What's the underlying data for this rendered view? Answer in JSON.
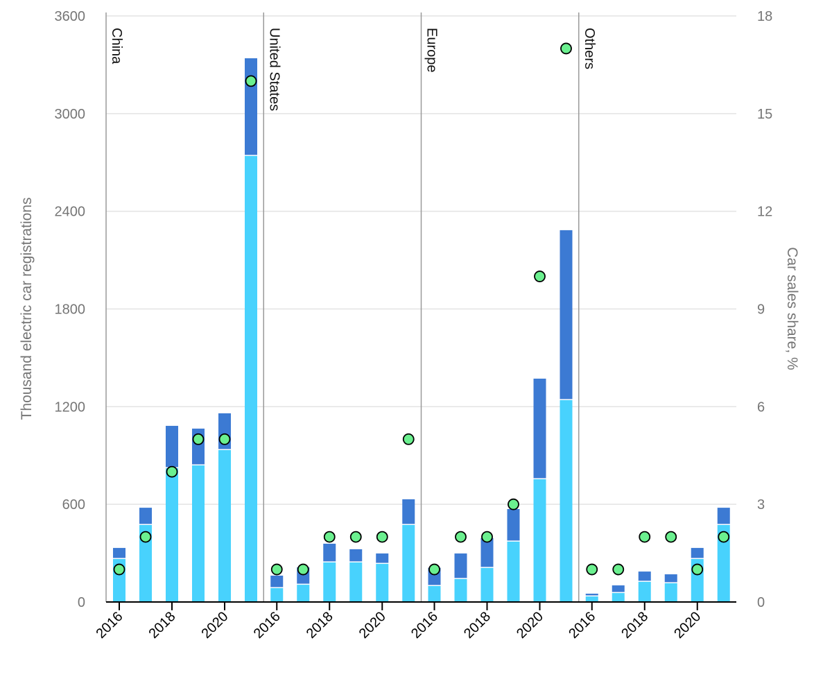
{
  "chart_data": {
    "type": "bar",
    "stacked": true,
    "groups": [
      "China",
      "United States",
      "Europe",
      "Others"
    ],
    "x": [
      2016,
      2017,
      2018,
      2019,
      2020,
      2021
    ],
    "x_tick_labels": [
      "2016",
      "2018",
      "2020"
    ],
    "ylabel": "Thousand electric car registrations",
    "y2label": "Car sales share, %",
    "ylim": [
      0,
      3600
    ],
    "y_ticks": [
      0,
      600,
      1200,
      1800,
      2400,
      3000,
      3600
    ],
    "y2lim": [
      0,
      18
    ],
    "y2_ticks": [
      0,
      3,
      6,
      9,
      12,
      15,
      18
    ],
    "grid": true,
    "series": [
      {
        "type": "bar",
        "color": "#48d2fd",
        "values": {
          "China": [
            264,
            473,
            822,
            839,
            933,
            2740
          ],
          "United States": [
            85,
            106,
            243,
            243,
            234,
            473
          ],
          "Europe": [
            98,
            141,
            209,
            371,
            754,
            1240
          ],
          "Others": [
            34,
            55,
            124,
            115,
            264,
            473
          ]
        }
      },
      {
        "type": "bar",
        "color": "#3c7ad3",
        "values": {
          "China": [
            68,
            106,
            260,
            226,
            226,
            600
          ],
          "United States": [
            77,
            107,
            115,
            81,
            64,
            158
          ],
          "Europe": [
            112,
            157,
            183,
            200,
            618,
            1044
          ],
          "Others": [
            17,
            47,
            63,
            55,
            68,
            106
          ]
        }
      },
      {
        "type": "scatter",
        "axis": "right",
        "color": "#6bf08f",
        "values": {
          "China": [
            1,
            2,
            4,
            5,
            5,
            16
          ],
          "United States": [
            1,
            1,
            2,
            2,
            2,
            5
          ],
          "Europe": [
            1,
            2,
            2,
            3,
            10,
            17
          ],
          "Others": [
            1,
            1,
            2,
            2,
            1,
            2
          ]
        }
      }
    ]
  }
}
